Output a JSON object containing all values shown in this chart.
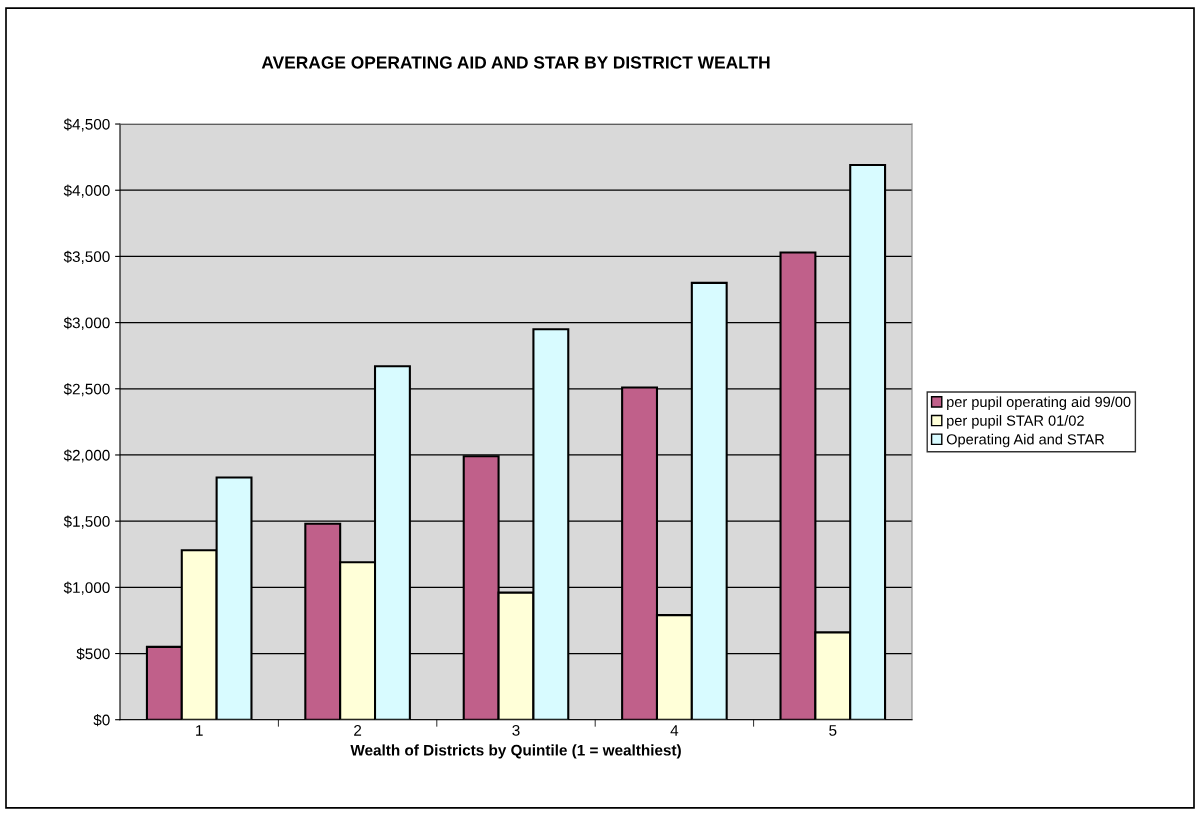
{
  "chart_data": {
    "type": "bar",
    "title": "AVERAGE OPERATING AID AND STAR BY DISTRICT WEALTH",
    "xlabel": "Wealth of Districts by Quintile (1 = wealthiest)",
    "categories": [
      "1",
      "2",
      "3",
      "4",
      "5"
    ],
    "series": [
      {
        "name": "per pupil operating aid 99/00",
        "color": "#c0608a",
        "values": [
          550,
          1480,
          1990,
          2510,
          3530
        ]
      },
      {
        "name": "per pupil STAR 01/02",
        "color": "#ffffd8",
        "values": [
          1280,
          1190,
          960,
          790,
          660
        ]
      },
      {
        "name": "Operating Aid and STAR",
        "color": "#d8fbff",
        "values": [
          1830,
          2670,
          2950,
          3300,
          4190
        ]
      }
    ],
    "ylim": [
      0,
      4500
    ],
    "yticks": [
      {
        "value": 0,
        "label": "$0"
      },
      {
        "value": 500,
        "label": "$500"
      },
      {
        "value": 1000,
        "label": "$1,000"
      },
      {
        "value": 1500,
        "label": "$1,500"
      },
      {
        "value": 2000,
        "label": "$2,000"
      },
      {
        "value": 2500,
        "label": "$2,500"
      },
      {
        "value": 3000,
        "label": "$3,000"
      },
      {
        "value": 3500,
        "label": "$3,500"
      },
      {
        "value": 4000,
        "label": "$4,000"
      },
      {
        "value": 4500,
        "label": "$4,500"
      }
    ],
    "grid": "y",
    "legend": "right"
  }
}
